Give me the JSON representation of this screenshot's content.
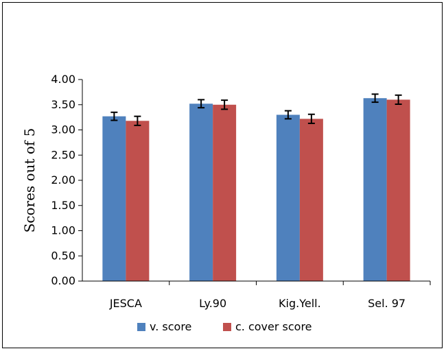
{
  "chart_data": {
    "type": "bar",
    "categories": [
      "JESCA",
      "Ly.90",
      "Kig.Yell.",
      "Sel. 97"
    ],
    "series": [
      {
        "name": "v. score",
        "color": "#4f81bd",
        "values": [
          3.27,
          3.52,
          3.3,
          3.63
        ],
        "error": [
          0.08,
          0.08,
          0.08,
          0.08
        ]
      },
      {
        "name": "c. cover score",
        "color": "#c0504d",
        "values": [
          3.18,
          3.5,
          3.22,
          3.6
        ],
        "error": [
          0.09,
          0.09,
          0.09,
          0.09
        ]
      }
    ],
    "ylabel": "Scores out of 5",
    "xlabel": "",
    "title": "",
    "ylim": [
      0,
      4
    ],
    "yticks": [
      "0.00",
      "0.50",
      "1.00",
      "1.50",
      "2.00",
      "2.50",
      "3.00",
      "3.50",
      "4.00"
    ],
    "grid": false,
    "legend_position": "bottom"
  }
}
